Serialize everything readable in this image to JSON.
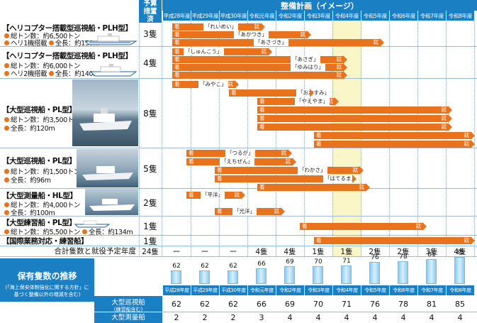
{
  "header": {
    "budget_label": "予算措置済",
    "plan_title": "整備計画（イメージ）"
  },
  "years": [
    "平成28年度",
    "平成29年度",
    "平成30年度",
    "令和元年度",
    "令和2年度",
    "令和3年度",
    "令和4年度",
    "令和5年度",
    "令和6年度",
    "令和7年度",
    "令和8年度"
  ],
  "vessels": [
    {
      "name": "【ヘリコプター搭載型巡視船・PLH型】",
      "spec1": "総トン数：約6,500トン",
      "spec2a": "ヘリ1機搭載",
      "spec2b": "全長：約150m",
      "budget": "3隻"
    },
    {
      "name": "【ヘリコプター搭載型巡視船・PLH型】",
      "spec1": "総トン数：約6,000トン",
      "spec2a": "ヘリ2機搭載",
      "spec2b": "全長：約140m",
      "budget": "4隻"
    },
    {
      "name": "【大型巡視船・PL型】",
      "spec1": "総トン数：約3,500トン",
      "spec2a": "全長：約120m",
      "budget": "8隻"
    },
    {
      "name": "【大型巡視船・PL型】",
      "spec1": "総トン数：約1,500トン",
      "spec2a": "全長：約96m",
      "budget": "5隻"
    },
    {
      "name": "【大型測量船・HL型】",
      "spec1": "総トン数：約4,000トン",
      "spec2a": "全長：約100m",
      "budget": "2隻"
    },
    {
      "name": "【大型練習船・PL型】",
      "spec1": "総トン数：約5,500トン",
      "spec2a": "全長：約134m",
      "budget": "1隻"
    },
    {
      "name": "【国際業務対応・練習船】",
      "budget": "1隻"
    }
  ],
  "bar_labels": {
    "start": "着",
    "end": "就"
  },
  "ship_names": [
    "「れいめい」",
    "「あかつき」",
    "「あさづき」",
    "「しゅんこう」",
    "「あさぎ」",
    "「ゆみはり」",
    "「みやこ」",
    "「おおすみ」",
    "「やえやま」",
    "「つるが」",
    "「えちぜん」",
    "「わかさ」",
    "「はてるま」",
    "「平洋」",
    "「光洋」"
  ],
  "summary": {
    "label": "合計隻数と就役予定年度",
    "budget": "24隻",
    "values": [
      "ー",
      "ー",
      "ー",
      "4隻",
      "4隻",
      "1隻",
      "1隻",
      "2隻",
      "2隻",
      "3隻",
      "4隻"
    ]
  },
  "holdings": {
    "title": "保有隻数の推移",
    "note": "(「海上保安体制強化に関する方針」に基づく整備以外の増減を含む)",
    "chart_data": {
      "type": "bar",
      "categories": [
        "平成28年度",
        "平成29年度",
        "平成30年度",
        "令和元年度",
        "令和2年度",
        "令和3年度",
        "令和4年度",
        "令和5年度",
        "令和6年度",
        "令和7年度",
        "令和8年度"
      ],
      "values": [
        62,
        62,
        62,
        66,
        69,
        70,
        71,
        76,
        78,
        81,
        85
      ]
    },
    "row1_label": "大型巡視船",
    "row1_sub": "(練習船含む)",
    "row1": [
      "62",
      "62",
      "62",
      "66",
      "69",
      "70",
      "71",
      "76",
      "78",
      "81",
      "85"
    ],
    "row2_label": "大型測量船",
    "row2": [
      "2",
      "2",
      "2",
      "3",
      "4",
      "4",
      "4",
      "4",
      "4",
      "4",
      "4"
    ]
  }
}
